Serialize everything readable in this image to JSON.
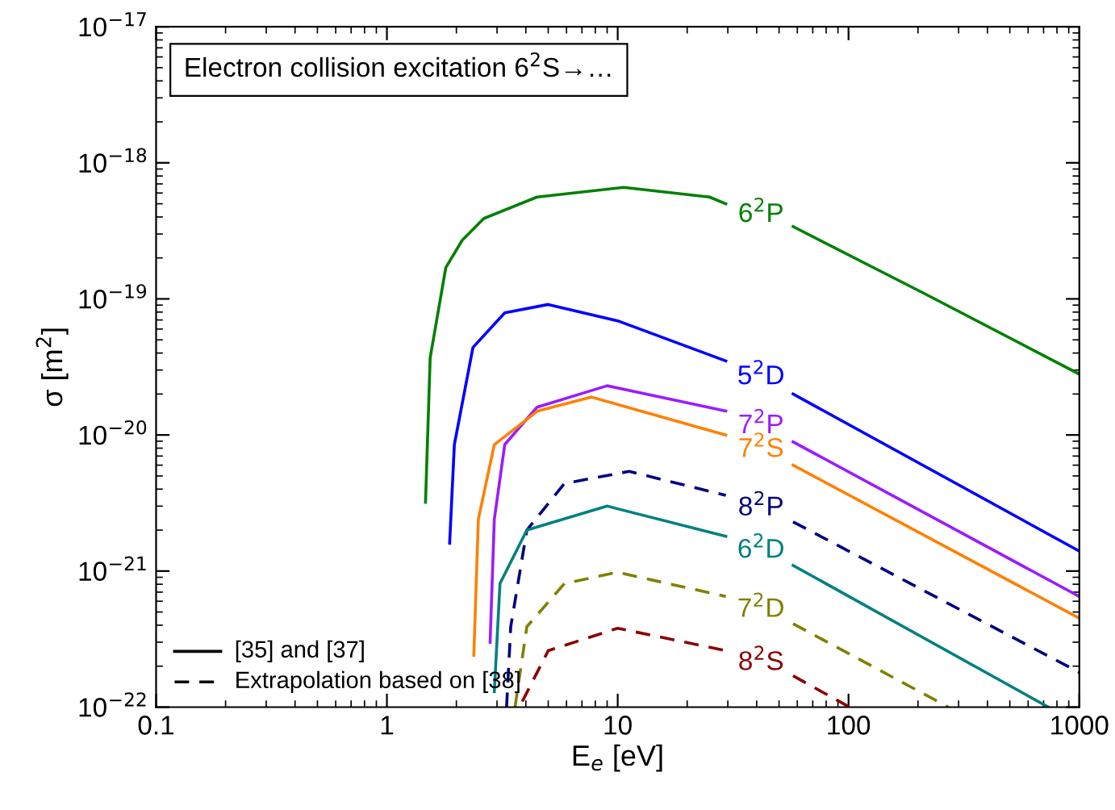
{
  "chart_data": {
    "type": "line",
    "title": "Electron collision excitation 6$^{2}$S→…",
    "xlabel": "E$_{e}$ [eV]",
    "ylabel": "σ [m$^{2}$]",
    "log": "xy",
    "xlim": [
      0.1,
      1000
    ],
    "xticks": [
      0.1,
      1,
      10,
      100,
      1000
    ],
    "ylim": [
      1e-22,
      1e-17
    ],
    "yticks": [
      {
        "value": 1e-22,
        "label": "10$^{−22}$"
      },
      {
        "value": 1e-21,
        "label": "10$^{−21}$"
      },
      {
        "value": 1e-20,
        "label": "10$^{−20}$"
      },
      {
        "value": 1e-19,
        "label": "10$^{−19}$"
      },
      {
        "value": 1e-18,
        "label": "10$^{−18}$"
      },
      {
        "value": 1e-17,
        "label": "10$^{−17}$"
      }
    ],
    "annotations": [
      "[35] and [37]",
      "Extrapolation based on [38]"
    ],
    "series": [
      {
        "name": "6$^{2}$P",
        "color": "#008000",
        "line_style": "solid",
        "x": [
          1.47,
          1.54,
          1.8,
          2.12,
          2.63,
          4.47,
          10.6,
          25,
          29.4,
          41.8,
          57.5,
          212,
          1000
        ],
        "values": [
          3.2e-21,
          3.7e-20,
          1.7e-19,
          2.7e-19,
          3.9e-19,
          5.6e-19,
          6.6e-19,
          5.6e-19,
          5e-19,
          null,
          3.4e-19,
          1.1e-19,
          2.8e-20
        ]
      },
      {
        "name": "5$^{2}$D",
        "color": "#0000ff",
        "line_style": "solid",
        "x": [
          1.87,
          1.96,
          2.36,
          3.24,
          5.0,
          10,
          29.4,
          41.8,
          57.5,
          1000
        ],
        "values": [
          1.6e-21,
          8.5e-21,
          4.4e-20,
          7.9e-20,
          9.1e-20,
          6.9e-20,
          3.5e-20,
          null,
          2e-20,
          1.4e-21
        ]
      },
      {
        "name": "7$^{2}$P",
        "color": "#9a1cff",
        "line_style": "solid",
        "x": [
          2.8,
          2.92,
          3.24,
          4.47,
          9,
          29.4,
          41.8,
          57.5,
          1000
        ],
        "values": [
          3e-22,
          2.4e-21,
          8.5e-21,
          1.6e-20,
          2.3e-20,
          1.5e-20,
          null,
          8.9e-21,
          6.5e-22
        ]
      },
      {
        "name": "7$^{2}$S",
        "color": "#ff8000",
        "line_style": "solid",
        "x": [
          2.38,
          2.49,
          2.92,
          4.5,
          7.67,
          29.4,
          41.8,
          57.5,
          1000
        ],
        "values": [
          2.4e-22,
          2.4e-21,
          8.5e-21,
          1.5e-20,
          1.9e-20,
          1e-20,
          null,
          6e-21,
          4.5e-22
        ]
      },
      {
        "name": "8$^{2}$P",
        "color": "#000080",
        "line_style": "dashed",
        "x": [
          3.3,
          3.44,
          4.04,
          5.88,
          11.2,
          29.4,
          41.8,
          57.5,
          1000
        ],
        "values": [
          1e-22,
          3.9e-22,
          2e-21,
          4.4e-21,
          5.4e-21,
          3.6e-21,
          null,
          2.3e-21,
          1.8e-22
        ]
      },
      {
        "name": "6$^{2}$D",
        "color": "#008080",
        "line_style": "solid",
        "x": [
          2.92,
          3.09,
          4.04,
          9,
          29.4,
          41.8,
          57.5,
          734
        ],
        "values": [
          1.3e-22,
          8.1e-22,
          2e-21,
          3e-21,
          1.8e-21,
          null,
          1.1e-21,
          1e-22
        ]
      },
      {
        "name": "7$^{2}$D",
        "color": "#808000",
        "line_style": "dashed",
        "x": [
          3.59,
          4.04,
          5.88,
          10,
          29.4,
          41.8,
          57.5,
          271
        ],
        "values": [
          1e-22,
          3.9e-22,
          8.1e-22,
          9.8e-22,
          6.5e-22,
          null,
          4.1e-22,
          1e-22
        ]
      },
      {
        "name": "8$^{2}$S",
        "color": "#8b0000",
        "line_style": "dashed",
        "x": [
          3.86,
          5.0,
          10,
          29.4,
          41.8,
          57.5,
          101
        ],
        "values": [
          1.1e-22,
          2.6e-22,
          3.8e-22,
          2.6e-22,
          null,
          1.7e-22,
          1e-22
        ]
      }
    ]
  }
}
